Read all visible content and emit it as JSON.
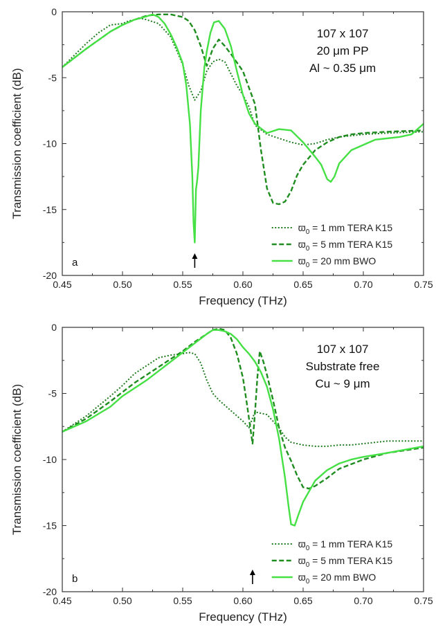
{
  "chart_data": [
    {
      "panel": "a",
      "type": "line",
      "xlabel": "Frequency (THz)",
      "ylabel": "Transmission coefficient (dB)",
      "xlim": [
        0.45,
        0.75
      ],
      "ylim": [
        -20,
        0
      ],
      "xticks": [
        "0.45",
        "0.50",
        "0.55",
        "0.60",
        "0.65",
        "0.70",
        "0.75"
      ],
      "yticks": [
        "0",
        "-5",
        "-10",
        "-15",
        "-20"
      ],
      "annotation": [
        "107 x 107",
        "20 μm PP",
        "Al ~ 0.35 μm"
      ],
      "arrow_at": 0.56,
      "series": [
        {
          "name": "ϖ0 = 1 mm TERA K15",
          "name_main": "ϖ",
          "name_sub": "0",
          "name_rest": " = 1 mm TERA K15",
          "style": "dotted",
          "color": "#1e7a1e",
          "x": [
            0.45,
            0.46,
            0.47,
            0.48,
            0.49,
            0.5,
            0.505,
            0.51,
            0.515,
            0.52,
            0.53,
            0.54,
            0.55,
            0.555,
            0.56,
            0.565,
            0.57,
            0.575,
            0.58,
            0.585,
            0.59,
            0.595,
            0.6,
            0.605,
            0.61,
            0.62,
            0.63,
            0.64,
            0.65,
            0.66,
            0.67,
            0.68,
            0.69,
            0.7,
            0.72,
            0.75
          ],
          "y": [
            -4.2,
            -3.3,
            -2.4,
            -1.6,
            -1.0,
            -0.9,
            -0.7,
            -0.6,
            -0.5,
            -0.6,
            -0.9,
            -1.9,
            -4.0,
            -5.6,
            -6.7,
            -6.0,
            -4.5,
            -3.8,
            -3.6,
            -3.8,
            -4.7,
            -5.6,
            -6.3,
            -7.2,
            -8.6,
            -9.3,
            -9.6,
            -9.9,
            -10.1,
            -10.0,
            -9.7,
            -9.5,
            -9.4,
            -9.3,
            -9.2,
            -9.1
          ]
        },
        {
          "name": "ϖ0 = 5 mm TERA K15",
          "name_main": "ϖ",
          "name_sub": "0",
          "name_rest": " = 5 mm TERA K15",
          "style": "dashed",
          "color": "#1e8c1e",
          "x": [
            0.45,
            0.47,
            0.49,
            0.5,
            0.51,
            0.52,
            0.53,
            0.54,
            0.55,
            0.555,
            0.56,
            0.565,
            0.57,
            0.575,
            0.58,
            0.585,
            0.59,
            0.6,
            0.61,
            0.615,
            0.62,
            0.625,
            0.63,
            0.635,
            0.64,
            0.645,
            0.65,
            0.66,
            0.67,
            0.68,
            0.69,
            0.7,
            0.72,
            0.75
          ],
          "y": [
            -4.2,
            -2.8,
            -1.5,
            -1.0,
            -0.6,
            -0.3,
            -0.2,
            -0.2,
            -0.4,
            -0.7,
            -1.4,
            -2.6,
            -4.1,
            -2.8,
            -2.1,
            -2.6,
            -3.2,
            -4.5,
            -7.0,
            -10.5,
            -13.4,
            -14.5,
            -14.6,
            -14.4,
            -13.6,
            -12.4,
            -11.6,
            -10.5,
            -9.9,
            -9.5,
            -9.3,
            -9.2,
            -9.1,
            -9.0
          ]
        },
        {
          "name": "ϖ0 = 20 mm BWO",
          "name_main": "ϖ",
          "name_sub": "0",
          "name_rest": " = 20 mm BWO",
          "style": "solid",
          "color": "#44e044",
          "x": [
            0.45,
            0.47,
            0.49,
            0.5,
            0.51,
            0.52,
            0.525,
            0.53,
            0.535,
            0.54,
            0.545,
            0.55,
            0.553,
            0.556,
            0.558,
            0.559,
            0.56,
            0.561,
            0.562,
            0.563,
            0.565,
            0.568,
            0.57,
            0.573,
            0.576,
            0.58,
            0.585,
            0.59,
            0.595,
            0.6,
            0.605,
            0.61,
            0.62,
            0.63,
            0.64,
            0.65,
            0.66,
            0.665,
            0.67,
            0.673,
            0.676,
            0.68,
            0.69,
            0.7,
            0.71,
            0.72,
            0.73,
            0.74,
            0.75
          ],
          "y": [
            -4.2,
            -2.8,
            -1.5,
            -1.0,
            -0.6,
            -0.35,
            -0.2,
            -0.4,
            -0.9,
            -1.7,
            -2.7,
            -3.9,
            -5.6,
            -8.5,
            -12.5,
            -16.0,
            -17.5,
            -13.5,
            -12.8,
            -11.8,
            -7.5,
            -4.2,
            -3.0,
            -1.6,
            -0.8,
            -0.7,
            -1.3,
            -2.6,
            -4.5,
            -6.3,
            -7.7,
            -8.5,
            -9.2,
            -8.9,
            -9.0,
            -9.9,
            -11.0,
            -11.6,
            -12.7,
            -12.9,
            -12.5,
            -11.5,
            -10.5,
            -10.1,
            -9.7,
            -9.6,
            -9.5,
            -9.3,
            -8.5
          ]
        }
      ]
    },
    {
      "panel": "b",
      "type": "line",
      "xlabel": "Frequency (THz)",
      "ylabel": "Transmission coefficient (dB)",
      "xlim": [
        0.45,
        0.75
      ],
      "ylim": [
        -20,
        0
      ],
      "xticks": [
        "0.45",
        "0.50",
        "0.55",
        "0.60",
        "0.65",
        "0.70",
        "0.75"
      ],
      "yticks": [
        "0",
        "-5",
        "-10",
        "-15",
        "-20"
      ],
      "annotation": [
        "107 x 107",
        "Substrate free",
        "Cu ~ 9 μm"
      ],
      "arrow_at": 0.608,
      "series": [
        {
          "name": "ϖ0 = 1 mm TERA K15",
          "name_main": "ϖ",
          "name_sub": "0",
          "name_rest": " = 1 mm TERA K15",
          "style": "dotted",
          "color": "#1e7a1e",
          "x": [
            0.45,
            0.47,
            0.49,
            0.5,
            0.51,
            0.52,
            0.53,
            0.54,
            0.55,
            0.555,
            0.56,
            0.565,
            0.57,
            0.575,
            0.58,
            0.59,
            0.6,
            0.605,
            0.61,
            0.62,
            0.63,
            0.635,
            0.64,
            0.65,
            0.66,
            0.67,
            0.68,
            0.69,
            0.7,
            0.72,
            0.75
          ],
          "y": [
            -7.9,
            -6.7,
            -5.2,
            -4.4,
            -3.5,
            -2.9,
            -2.3,
            -2.1,
            -2.0,
            -1.9,
            -2.0,
            -2.7,
            -4.0,
            -5.0,
            -5.5,
            -6.3,
            -7.1,
            -7.6,
            -6.4,
            -6.6,
            -7.6,
            -8.3,
            -8.7,
            -8.9,
            -9.0,
            -9.0,
            -8.9,
            -8.9,
            -8.8,
            -8.6,
            -8.6
          ]
        },
        {
          "name": "ϖ0 = 5 mm TERA K15",
          "name_main": "ϖ",
          "name_sub": "0",
          "name_rest": " = 5 mm TERA K15",
          "style": "dashed",
          "color": "#1e8c1e",
          "x": [
            0.45,
            0.47,
            0.49,
            0.5,
            0.51,
            0.52,
            0.53,
            0.54,
            0.55,
            0.56,
            0.57,
            0.575,
            0.58,
            0.585,
            0.59,
            0.595,
            0.6,
            0.603,
            0.606,
            0.608,
            0.61,
            0.612,
            0.614,
            0.617,
            0.62,
            0.625,
            0.63,
            0.635,
            0.64,
            0.645,
            0.65,
            0.655,
            0.66,
            0.67,
            0.68,
            0.7,
            0.72,
            0.75
          ],
          "y": [
            -7.9,
            -6.9,
            -5.6,
            -4.9,
            -4.2,
            -3.6,
            -3.0,
            -2.4,
            -1.8,
            -1.1,
            -0.5,
            -0.2,
            -0.1,
            -0.2,
            -0.8,
            -2.0,
            -3.8,
            -5.6,
            -7.5,
            -8.8,
            -6.5,
            -3.8,
            -1.8,
            -2.6,
            -3.6,
            -5.5,
            -7.6,
            -9.1,
            -10.1,
            -11.2,
            -12.1,
            -12.2,
            -12.0,
            -11.4,
            -10.7,
            -10.0,
            -9.5,
            -9.1
          ]
        },
        {
          "name": "ϖ0 = 20 mm BWO",
          "name_main": "ϖ",
          "name_sub": "0",
          "name_rest": " = 20 mm BWO",
          "style": "solid",
          "color": "#44e044",
          "x": [
            0.45,
            0.47,
            0.49,
            0.5,
            0.51,
            0.52,
            0.53,
            0.54,
            0.55,
            0.56,
            0.57,
            0.575,
            0.58,
            0.585,
            0.59,
            0.595,
            0.6,
            0.605,
            0.61,
            0.615,
            0.62,
            0.625,
            0.63,
            0.635,
            0.638,
            0.64,
            0.643,
            0.646,
            0.65,
            0.655,
            0.66,
            0.67,
            0.68,
            0.69,
            0.7,
            0.72,
            0.75
          ],
          "y": [
            -7.9,
            -7.1,
            -6.0,
            -5.2,
            -4.6,
            -4.0,
            -3.3,
            -2.6,
            -1.9,
            -1.2,
            -0.5,
            -0.2,
            -0.2,
            -0.3,
            -0.5,
            -0.9,
            -1.5,
            -2.0,
            -2.6,
            -3.4,
            -4.5,
            -6.2,
            -8.4,
            -11.4,
            -13.6,
            -14.9,
            -15.0,
            -14.2,
            -13.2,
            -12.4,
            -11.6,
            -10.8,
            -10.3,
            -10.0,
            -9.8,
            -9.5,
            -9.0
          ]
        }
      ]
    }
  ]
}
